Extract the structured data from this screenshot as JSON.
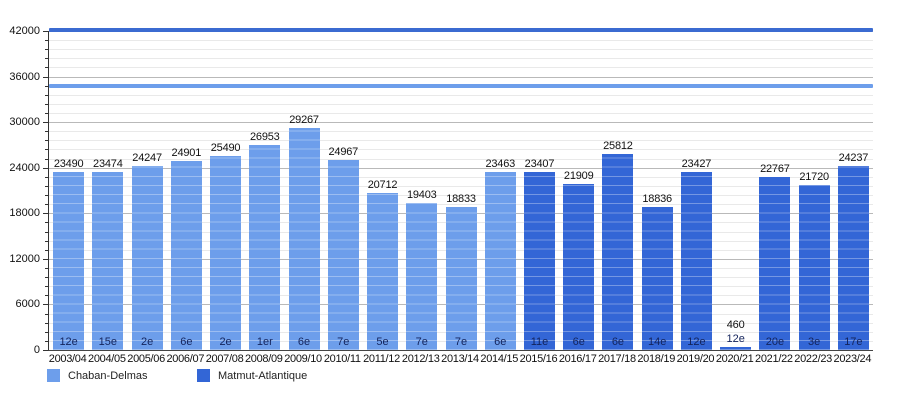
{
  "chart_data": {
    "type": "bar",
    "title": "",
    "xlabel": "",
    "ylabel": "",
    "ylim": [
      0,
      42000
    ],
    "y_major_step": 6000,
    "y_minor_step": 1200,
    "grid": true,
    "legend_position": "bottom-left",
    "series": [
      {
        "name": "Chaban-Delmas",
        "color": "#6d9eeb"
      },
      {
        "name": "Matmut-Atlantique",
        "color": "#3366d6"
      }
    ],
    "reference_lines": [
      {
        "name": "upper-capacity-line",
        "value": 42100,
        "color": "#3b6bd1"
      },
      {
        "name": "lower-capacity-line",
        "value": 34700,
        "color": "#6d9eeb"
      }
    ],
    "seasons": [
      {
        "season": "2003/04",
        "attendance": 23490,
        "rank": "12e",
        "stadium": "Chaban-Delmas"
      },
      {
        "season": "2004/05",
        "attendance": 23474,
        "rank": "15e",
        "stadium": "Chaban-Delmas"
      },
      {
        "season": "2005/06",
        "attendance": 24247,
        "rank": "2e",
        "stadium": "Chaban-Delmas"
      },
      {
        "season": "2006/07",
        "attendance": 24901,
        "rank": "6e",
        "stadium": "Chaban-Delmas"
      },
      {
        "season": "2007/08",
        "attendance": 25490,
        "rank": "2e",
        "stadium": "Chaban-Delmas"
      },
      {
        "season": "2008/09",
        "attendance": 26953,
        "rank": "1er",
        "stadium": "Chaban-Delmas"
      },
      {
        "season": "2009/10",
        "attendance": 29267,
        "rank": "6e",
        "stadium": "Chaban-Delmas"
      },
      {
        "season": "2010/11",
        "attendance": 24967,
        "rank": "7e",
        "stadium": "Chaban-Delmas"
      },
      {
        "season": "2011/12",
        "attendance": 20712,
        "rank": "5e",
        "stadium": "Chaban-Delmas"
      },
      {
        "season": "2012/13",
        "attendance": 19403,
        "rank": "7e",
        "stadium": "Chaban-Delmas"
      },
      {
        "season": "2013/14",
        "attendance": 18833,
        "rank": "7e",
        "stadium": "Chaban-Delmas"
      },
      {
        "season": "2014/15",
        "attendance": 23463,
        "rank": "6e",
        "stadium": "Chaban-Delmas"
      },
      {
        "season": "2015/16",
        "attendance": 23407,
        "rank": "11e",
        "stadium": "Matmut-Atlantique"
      },
      {
        "season": "2016/17",
        "attendance": 21909,
        "rank": "6e",
        "stadium": "Matmut-Atlantique"
      },
      {
        "season": "2017/18",
        "attendance": 25812,
        "rank": "6e",
        "stadium": "Matmut-Atlantique"
      },
      {
        "season": "2018/19",
        "attendance": 18836,
        "rank": "14e",
        "stadium": "Matmut-Atlantique"
      },
      {
        "season": "2019/20",
        "attendance": 23427,
        "rank": "12e",
        "stadium": "Matmut-Atlantique"
      },
      {
        "season": "2020/21",
        "attendance": 460,
        "rank": "12e",
        "stadium": "Matmut-Atlantique"
      },
      {
        "season": "2021/22",
        "attendance": 22767,
        "rank": "20e",
        "stadium": "Matmut-Atlantique"
      },
      {
        "season": "2022/23",
        "attendance": 21720,
        "rank": "3e",
        "stadium": "Matmut-Atlantique"
      },
      {
        "season": "2023/24",
        "attendance": 24237,
        "rank": "17e",
        "stadium": "Matmut-Atlantique"
      }
    ],
    "yticks": [
      0,
      6000,
      12000,
      18000,
      24000,
      30000,
      36000,
      42000
    ]
  }
}
